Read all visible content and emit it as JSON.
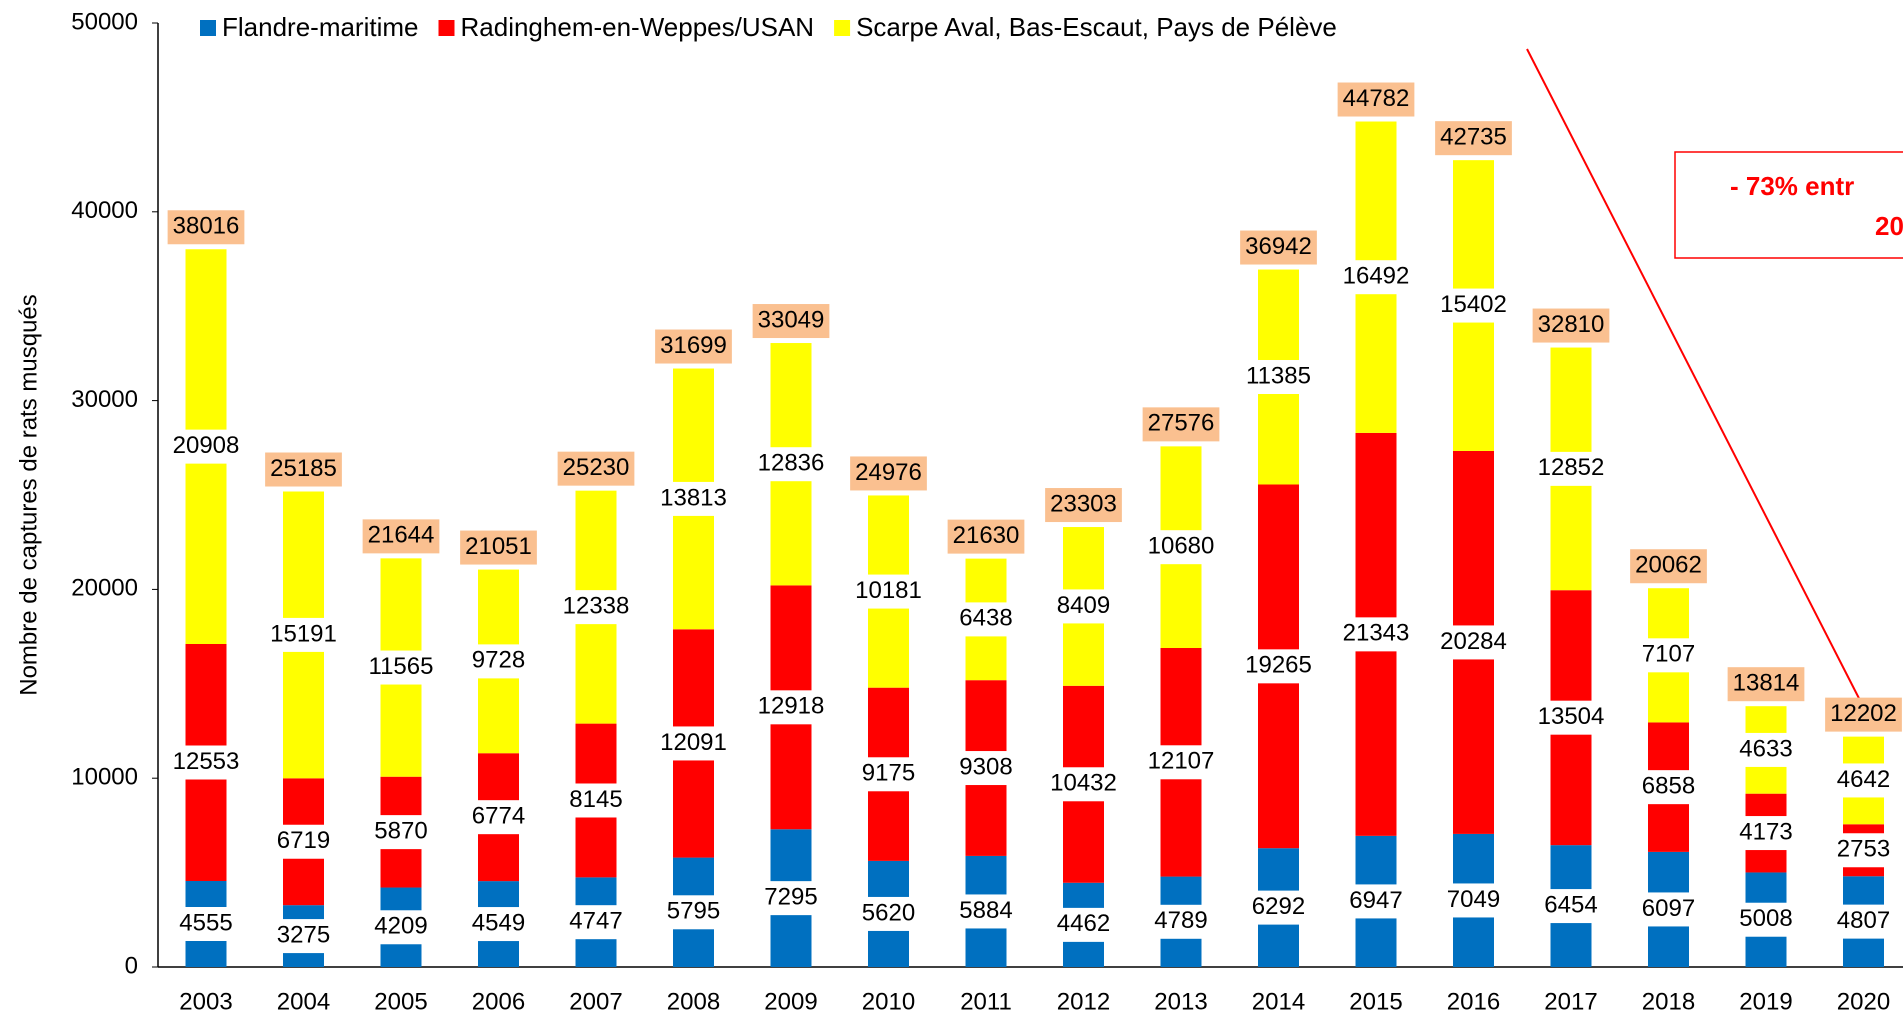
{
  "chart_data": {
    "type": "bar",
    "stacked": true,
    "y_label": "Nombre de captures de rats musqués",
    "categories": [
      "2003",
      "2004",
      "2005",
      "2006",
      "2007",
      "2008",
      "2009",
      "2010",
      "2011",
      "2012",
      "2013",
      "2014",
      "2015",
      "2016",
      "2017",
      "2018",
      "2019",
      "2020"
    ],
    "series": [
      {
        "name": "Flandre-maritime",
        "color": "#0070c0",
        "values": [
          4555,
          3275,
          4209,
          4549,
          4747,
          5795,
          7295,
          5620,
          5884,
          4462,
          4789,
          6292,
          6947,
          7049,
          6454,
          6097,
          5008,
          4807
        ]
      },
      {
        "name": "Radinghem-en-Weppes/USAN",
        "color": "#ff0000",
        "values": [
          12553,
          6719,
          5870,
          6774,
          8145,
          12091,
          12918,
          9175,
          9308,
          10432,
          12107,
          19265,
          21343,
          20284,
          13504,
          6858,
          4173,
          2753
        ]
      },
      {
        "name": "Scarpe Aval, Bas-Escaut, Pays de Pélève",
        "color": "#ffff00",
        "values": [
          20908,
          15191,
          11565,
          9728,
          12338,
          13813,
          12836,
          10181,
          6438,
          8409,
          10680,
          11385,
          16492,
          15402,
          12852,
          7107,
          4633,
          4642
        ]
      }
    ],
    "totals": [
      38016,
      25185,
      21644,
      21051,
      25230,
      31699,
      33049,
      24976,
      21630,
      23303,
      27576,
      36942,
      44782,
      42735,
      32810,
      20062,
      13814,
      12202
    ],
    "total_color": "#fac090",
    "annotation": [
      "- 73% entr",
      "20"
    ],
    "ylim": [
      0,
      50000
    ],
    "yticks": [
      0,
      10000,
      20000,
      30000,
      40000,
      50000
    ],
    "grid": false
  }
}
